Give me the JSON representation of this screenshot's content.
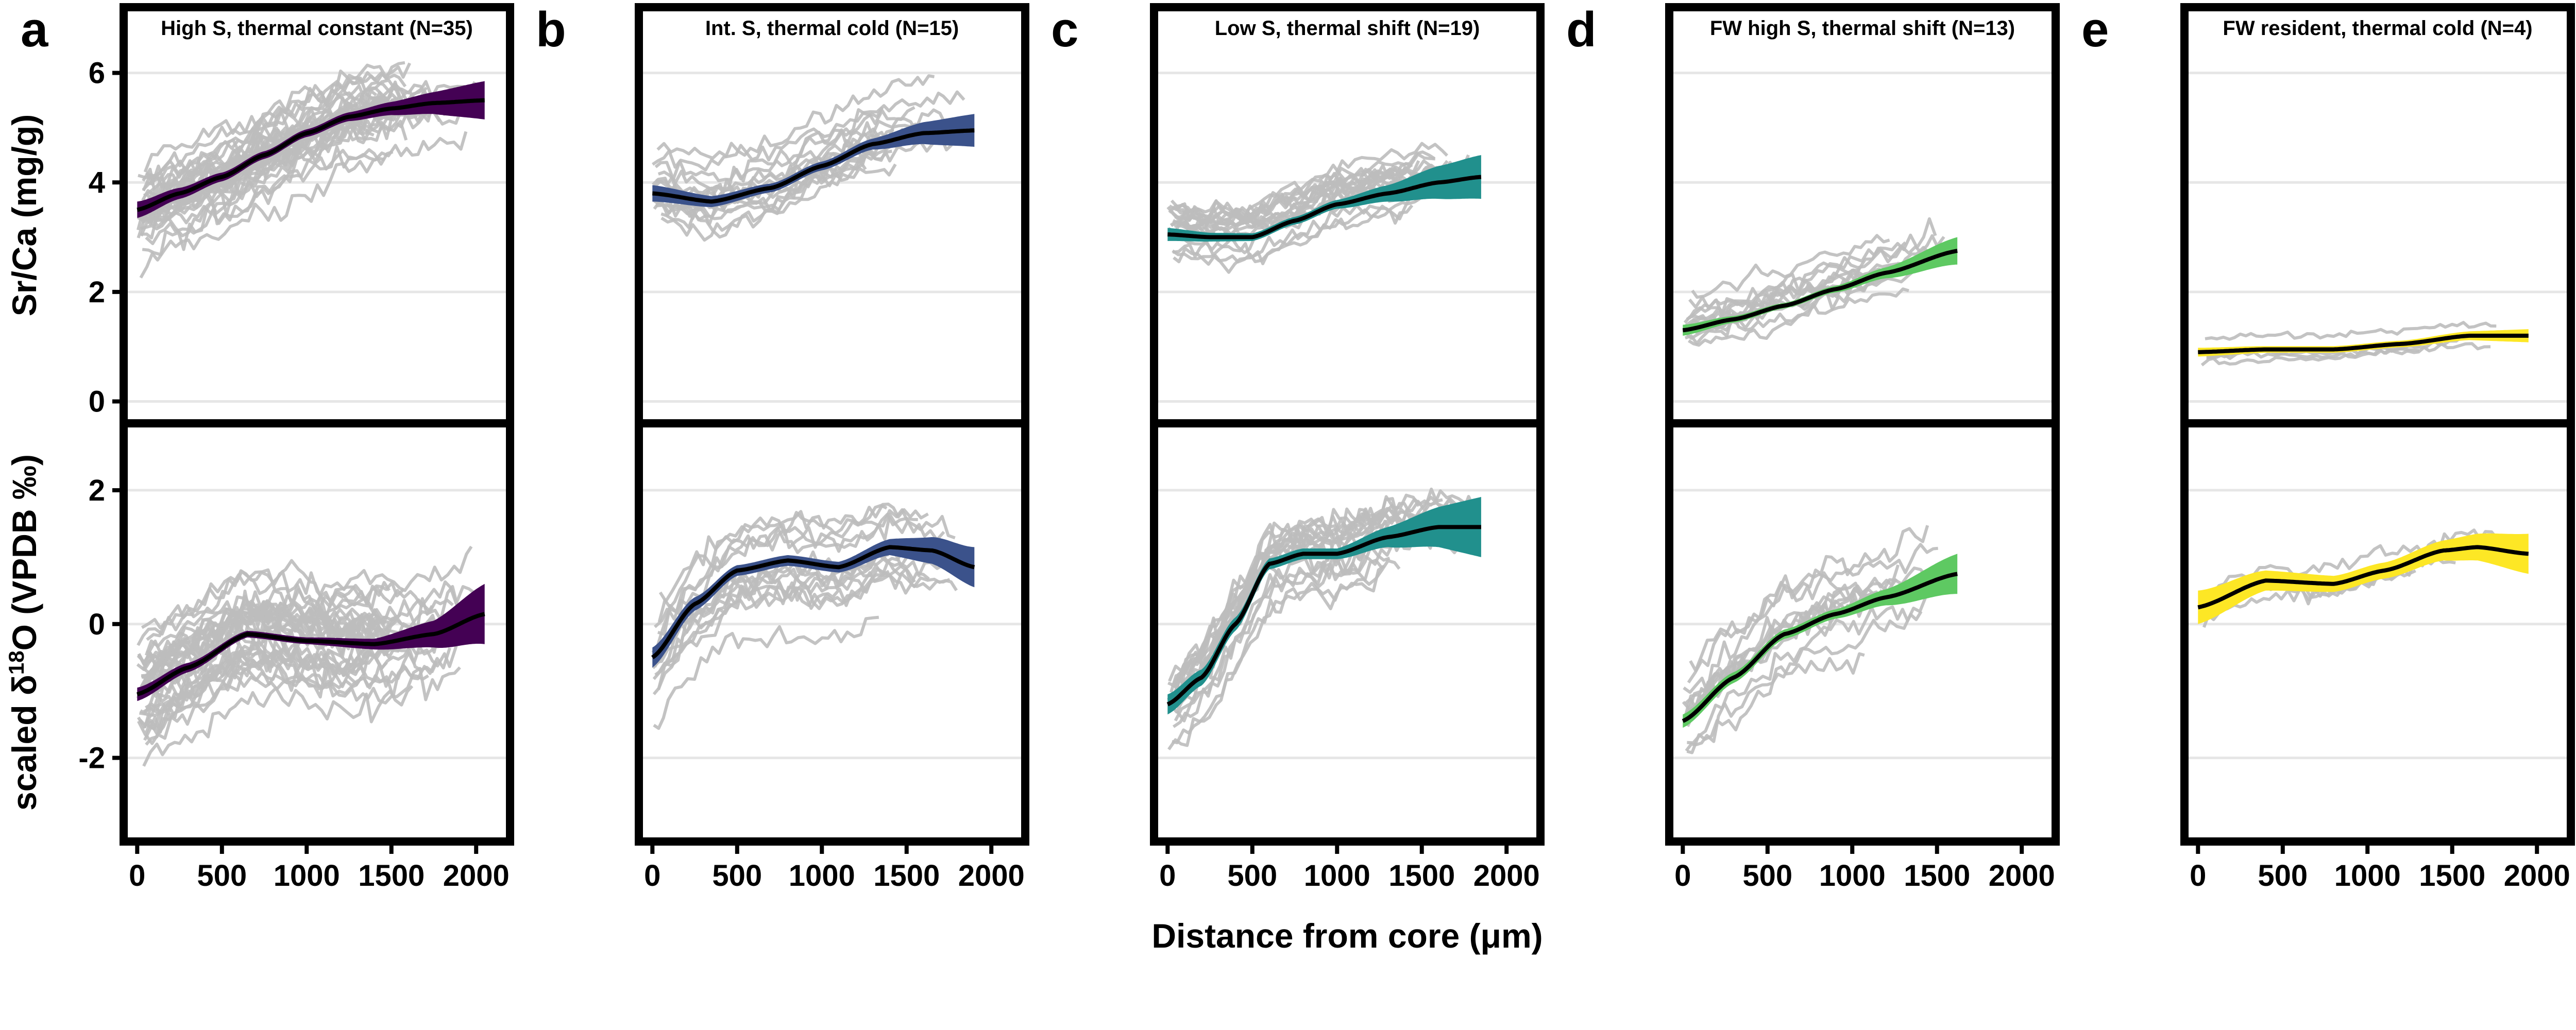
{
  "chart_data": {
    "type": "line",
    "xlabel": "Distance from core (μm)",
    "x_ticks": [
      "0",
      "500",
      "1000",
      "1500",
      "2000"
    ],
    "xlim": [
      -80,
      2200
    ],
    "rows": [
      {
        "ylabel_pre": "Sr/Ca (mg/g)",
        "ylabel_sup": "",
        "ylabel_post": "",
        "ylim": [
          -0.4,
          7.2
        ],
        "y_ticks": [
          0,
          2,
          4,
          6
        ],
        "y_tick_labels": [
          "0",
          "2",
          "4",
          "6"
        ]
      },
      {
        "ylabel_pre": "scaled δ",
        "ylabel_sup": "18",
        "ylabel_post": "O (VPDB ‰)",
        "ylim": [
          -3.25,
          3.0
        ],
        "y_ticks": [
          -2,
          0,
          2
        ],
        "y_tick_labels": [
          "-2",
          "0",
          "2"
        ]
      }
    ],
    "panels": [
      {
        "letter": "a",
        "title": "High S, thermal constant (N=35)",
        "color": "#440154",
        "n_individuals": 35,
        "x_max": 2050,
        "top_fit": [
          [
            0,
            3.5
          ],
          [
            250,
            3.8
          ],
          [
            500,
            4.1
          ],
          [
            750,
            4.5
          ],
          [
            1000,
            4.9
          ],
          [
            1250,
            5.2
          ],
          [
            1500,
            5.35
          ],
          [
            1750,
            5.45
          ],
          [
            2050,
            5.5
          ]
        ],
        "top_ci": [
          0.15,
          0.1,
          0.08,
          0.07,
          0.07,
          0.08,
          0.12,
          0.2,
          0.35
        ],
        "top_noise": 0.55,
        "bottom_fit": [
          [
            0,
            -1.05
          ],
          [
            300,
            -0.65
          ],
          [
            650,
            -0.15
          ],
          [
            1000,
            -0.25
          ],
          [
            1400,
            -0.3
          ],
          [
            1750,
            -0.15
          ],
          [
            2050,
            0.15
          ]
        ],
        "bottom_ci": [
          0.1,
          0.07,
          0.05,
          0.05,
          0.08,
          0.2,
          0.45
        ],
        "bottom_noise": 0.55
      },
      {
        "letter": "b",
        "title": "Int. S, thermal cold (N=15)",
        "color": "#3b528b",
        "n_individuals": 15,
        "x_max": 1900,
        "top_fit": [
          [
            0,
            3.8
          ],
          [
            350,
            3.65
          ],
          [
            700,
            3.9
          ],
          [
            1000,
            4.3
          ],
          [
            1300,
            4.7
          ],
          [
            1600,
            4.9
          ],
          [
            1900,
            4.95
          ]
        ],
        "top_ci": [
          0.15,
          0.1,
          0.08,
          0.08,
          0.1,
          0.2,
          0.3
        ],
        "top_noise": 0.45,
        "bottom_fit": [
          [
            0,
            -0.5
          ],
          [
            250,
            0.3
          ],
          [
            500,
            0.8
          ],
          [
            800,
            0.95
          ],
          [
            1100,
            0.85
          ],
          [
            1400,
            1.15
          ],
          [
            1650,
            1.1
          ],
          [
            1900,
            0.85
          ]
        ],
        "bottom_ci": [
          0.15,
          0.1,
          0.08,
          0.08,
          0.08,
          0.12,
          0.2,
          0.3
        ],
        "bottom_noise": 0.45
      },
      {
        "letter": "c",
        "title": "Low S, thermal shift (N=19)",
        "color": "#21908d",
        "n_individuals": 19,
        "x_max": 1850,
        "top_fit": [
          [
            0,
            3.05
          ],
          [
            250,
            3.0
          ],
          [
            500,
            3.0
          ],
          [
            750,
            3.3
          ],
          [
            1000,
            3.6
          ],
          [
            1300,
            3.8
          ],
          [
            1600,
            4.0
          ],
          [
            1850,
            4.1
          ]
        ],
        "top_ci": [
          0.12,
          0.08,
          0.07,
          0.07,
          0.08,
          0.15,
          0.3,
          0.4
        ],
        "top_noise": 0.45,
        "bottom_fit": [
          [
            0,
            -1.2
          ],
          [
            200,
            -0.8
          ],
          [
            400,
            0.0
          ],
          [
            600,
            0.9
          ],
          [
            800,
            1.05
          ],
          [
            1000,
            1.05
          ],
          [
            1300,
            1.3
          ],
          [
            1600,
            1.45
          ],
          [
            1850,
            1.45
          ]
        ],
        "bottom_ci": [
          0.15,
          0.12,
          0.1,
          0.08,
          0.08,
          0.08,
          0.15,
          0.3,
          0.45
        ],
        "bottom_noise": 0.55
      },
      {
        "letter": "d",
        "title": "FW high S, thermal shift (N=13)",
        "color": "#5ec962",
        "n_individuals": 13,
        "x_max": 1620,
        "top_fit": [
          [
            0,
            1.3
          ],
          [
            300,
            1.5
          ],
          [
            600,
            1.75
          ],
          [
            900,
            2.05
          ],
          [
            1200,
            2.35
          ],
          [
            1620,
            2.75
          ]
        ],
        "top_ci": [
          0.1,
          0.06,
          0.05,
          0.06,
          0.1,
          0.25
        ],
        "top_noise": 0.4,
        "bottom_fit": [
          [
            0,
            -1.45
          ],
          [
            300,
            -0.8
          ],
          [
            600,
            -0.15
          ],
          [
            900,
            0.15
          ],
          [
            1200,
            0.4
          ],
          [
            1620,
            0.75
          ]
        ],
        "bottom_ci": [
          0.1,
          0.08,
          0.07,
          0.07,
          0.12,
          0.3
        ],
        "bottom_noise": 0.5
      },
      {
        "letter": "e",
        "title": "FW resident, thermal cold (N=4)",
        "color": "#fde725",
        "n_individuals": 4,
        "x_max": 1950,
        "top_fit": [
          [
            0,
            0.9
          ],
          [
            400,
            0.95
          ],
          [
            800,
            0.95
          ],
          [
            1200,
            1.05
          ],
          [
            1600,
            1.2
          ],
          [
            1950,
            1.2
          ]
        ],
        "top_ci": [
          0.08,
          0.06,
          0.06,
          0.06,
          0.08,
          0.12
        ],
        "top_noise": 0.15,
        "bottom_fit": [
          [
            0,
            0.25
          ],
          [
            400,
            0.65
          ],
          [
            800,
            0.6
          ],
          [
            1100,
            0.8
          ],
          [
            1450,
            1.1
          ],
          [
            1650,
            1.15
          ],
          [
            1950,
            1.05
          ]
        ],
        "bottom_ci": [
          0.25,
          0.15,
          0.12,
          0.12,
          0.15,
          0.2,
          0.3
        ],
        "bottom_noise": 0.35
      }
    ]
  }
}
